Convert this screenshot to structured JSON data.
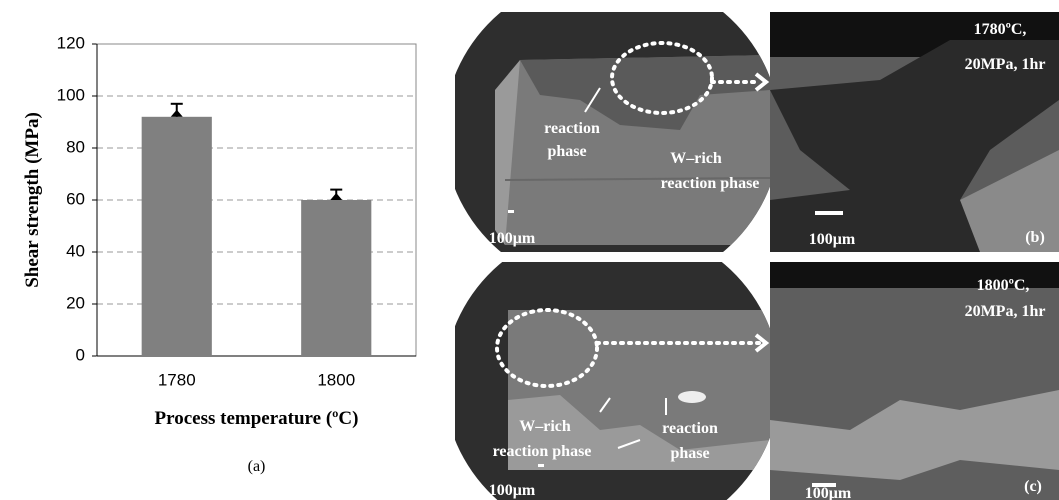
{
  "chart_data": {
    "type": "bar",
    "categories": [
      "1780",
      "1800"
    ],
    "values": [
      92,
      60
    ],
    "errors": [
      5,
      4
    ],
    "color": "#808080",
    "xlabel": "Process temperature (ºC)",
    "ylabel": "Shear strength (MPa)",
    "caption": "(a)",
    "ylim": [
      0,
      120
    ],
    "yticks": [
      0,
      20,
      40,
      60,
      80,
      100,
      120
    ],
    "grid": true
  },
  "micrographs": [
    {
      "panel_label": "(b)",
      "condition": [
        "1780ºC,",
        "20MPa, 1hr"
      ],
      "labels": [
        "reaction",
        "phase",
        "W–rich",
        "reaction phase"
      ],
      "scale_bars": [
        "100μm",
        "100μm"
      ]
    },
    {
      "panel_label": "(c)",
      "condition": [
        "1800ºC,",
        "20MPa, 1hr"
      ],
      "labels": [
        "W–rich",
        "reaction phase",
        "reaction",
        "phase"
      ],
      "scale_bars": [
        "100μm",
        "100μm"
      ]
    }
  ]
}
